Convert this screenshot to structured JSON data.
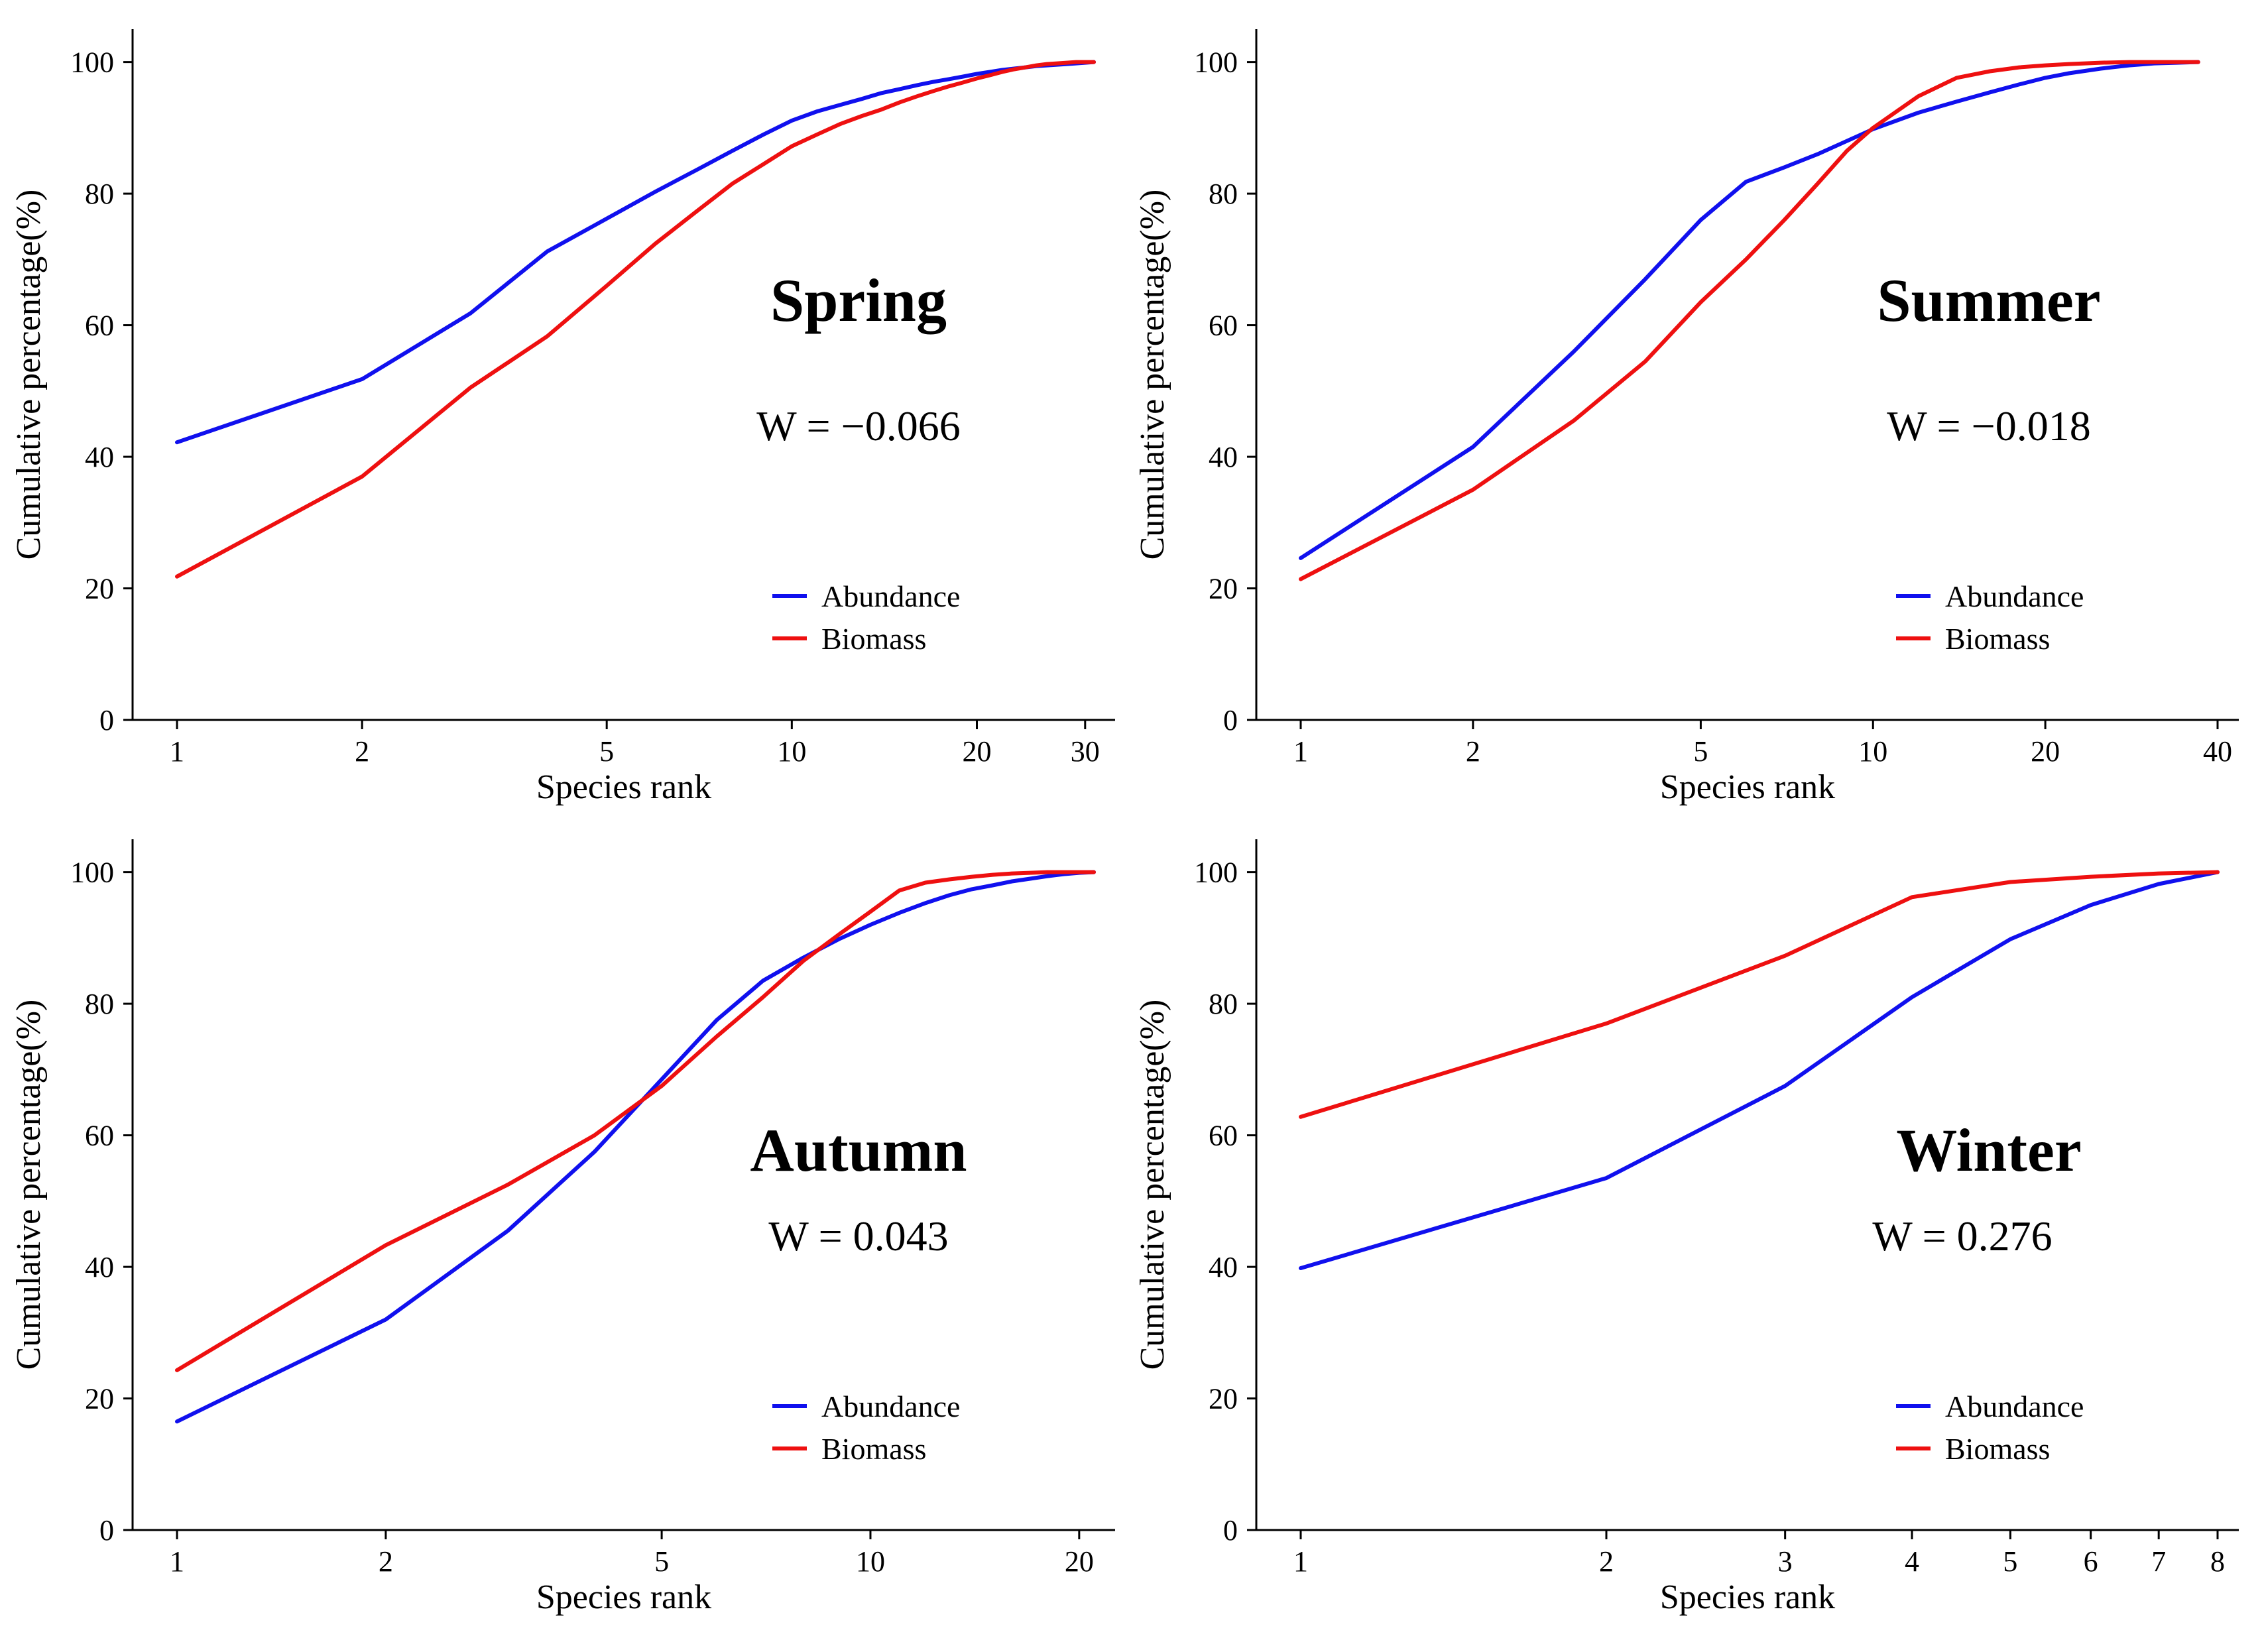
{
  "colors": {
    "abundance": "#1010ee",
    "biomass": "#ee1010",
    "axis": "#000000"
  },
  "chart_data": [
    {
      "type": "line",
      "title": "Spring",
      "annotation": "W = −0.066",
      "xlabel": "Species rank",
      "ylabel": "Cumulative percentage(%)",
      "xscale": "log",
      "xlim": [
        0.85,
        37
      ],
      "ylim": [
        0,
        105
      ],
      "xticks": [
        1,
        2,
        5,
        10,
        20,
        30
      ],
      "yticks": [
        0,
        20,
        40,
        60,
        80,
        100
      ],
      "legend": "lower-right",
      "series": [
        {
          "name": "Abundance",
          "color_key": "abundance",
          "x": [
            1,
            2,
            3,
            4,
            5,
            6,
            7,
            8,
            9,
            10,
            11,
            12,
            13,
            14,
            15,
            16,
            17,
            18,
            19,
            20,
            21,
            22,
            23,
            24,
            25,
            26,
            27,
            28,
            29,
            30,
            31
          ],
          "y": [
            42.2,
            51.8,
            61.8,
            71.2,
            76.2,
            80.3,
            83.6,
            86.5,
            89.0,
            91.1,
            92.5,
            93.5,
            94.4,
            95.3,
            95.9,
            96.5,
            97.0,
            97.4,
            97.8,
            98.2,
            98.5,
            98.8,
            99.0,
            99.2,
            99.4,
            99.5,
            99.6,
            99.7,
            99.8,
            99.9,
            100
          ]
        },
        {
          "name": "Biomass",
          "color_key": "biomass",
          "x": [
            1,
            2,
            3,
            4,
            5,
            6,
            7,
            8,
            9,
            10,
            11,
            12,
            13,
            14,
            15,
            16,
            17,
            18,
            19,
            20,
            21,
            22,
            23,
            24,
            25,
            26,
            27,
            28,
            29,
            30,
            31
          ],
          "y": [
            21.8,
            37.0,
            50.5,
            58.3,
            66.0,
            72.4,
            77.3,
            81.5,
            84.5,
            87.2,
            89.0,
            90.6,
            91.8,
            92.8,
            93.9,
            94.8,
            95.6,
            96.3,
            96.9,
            97.5,
            98.0,
            98.5,
            98.9,
            99.2,
            99.5,
            99.7,
            99.8,
            99.9,
            100,
            100,
            100
          ]
        }
      ]
    },
    {
      "type": "line",
      "title": "Summer",
      "annotation": "W = −0.018",
      "xlabel": "Species rank",
      "ylabel": "Cumulative percentage(%)",
      "xscale": "log",
      "xlim": [
        0.85,
        45
      ],
      "ylim": [
        0,
        105
      ],
      "xticks": [
        1,
        2,
        5,
        10,
        20,
        40
      ],
      "yticks": [
        0,
        20,
        40,
        60,
        80,
        100
      ],
      "legend": "lower-right",
      "series": [
        {
          "name": "Abundance",
          "color_key": "abundance",
          "x": [
            1,
            2,
            3,
            4,
            5,
            6,
            7,
            8,
            9,
            10,
            12,
            14,
            16,
            18,
            20,
            22,
            25,
            28,
            31,
            34,
            37
          ],
          "y": [
            24.6,
            41.5,
            56.0,
            67.0,
            76.0,
            81.8,
            84.0,
            86.0,
            88.0,
            89.8,
            92.3,
            94.0,
            95.4,
            96.6,
            97.6,
            98.3,
            99.0,
            99.5,
            99.8,
            99.9,
            100
          ]
        },
        {
          "name": "Biomass",
          "color_key": "biomass",
          "x": [
            1,
            2,
            3,
            4,
            5,
            6,
            7,
            8,
            9,
            10,
            12,
            14,
            16,
            18,
            20,
            22,
            25,
            28,
            31,
            34,
            37
          ],
          "y": [
            21.4,
            35.0,
            45.5,
            54.5,
            63.5,
            70.0,
            76.0,
            81.5,
            86.5,
            90.0,
            94.8,
            97.6,
            98.6,
            99.2,
            99.5,
            99.7,
            99.9,
            100,
            100,
            100,
            100
          ]
        }
      ]
    },
    {
      "type": "line",
      "title": "Autumn",
      "annotation": "W = 0.043",
      "xlabel": "Species rank",
      "ylabel": "Cumulative percentage(%)",
      "xscale": "log",
      "xlim": [
        0.85,
        25
      ],
      "ylim": [
        0,
        105
      ],
      "xticks": [
        1,
        2,
        5,
        10,
        20
      ],
      "yticks": [
        0,
        20,
        40,
        60,
        80,
        100
      ],
      "legend": "lower-right",
      "series": [
        {
          "name": "Abundance",
          "color_key": "abundance",
          "x": [
            1,
            2,
            3,
            4,
            5,
            6,
            7,
            8,
            9,
            10,
            11,
            12,
            13,
            14,
            15,
            16,
            17,
            18,
            19,
            20,
            21
          ],
          "y": [
            16.5,
            32.0,
            45.5,
            57.5,
            68.5,
            77.5,
            83.5,
            87.0,
            89.8,
            92.0,
            93.8,
            95.3,
            96.5,
            97.4,
            98.0,
            98.6,
            99.0,
            99.4,
            99.7,
            99.9,
            100
          ]
        },
        {
          "name": "Biomass",
          "color_key": "biomass",
          "x": [
            1,
            2,
            3,
            4,
            5,
            6,
            7,
            8,
            9,
            10,
            11,
            12,
            13,
            14,
            15,
            16,
            17,
            18,
            19,
            20,
            21
          ],
          "y": [
            24.3,
            43.3,
            52.5,
            60.0,
            67.5,
            75.0,
            81.0,
            86.5,
            90.5,
            94.0,
            97.2,
            98.4,
            98.9,
            99.3,
            99.6,
            99.8,
            99.9,
            100,
            100,
            100,
            100
          ]
        }
      ]
    },
    {
      "type": "line",
      "title": "Winter",
      "annotation": "W = 0.276",
      "xlabel": "Species rank",
      "ylabel": "Cumulative percentage(%)",
      "xscale": "log",
      "xlim": [
        0.85,
        9.0
      ],
      "ylim": [
        0,
        105
      ],
      "xticks": [
        1,
        2,
        3,
        4,
        5,
        6,
        7,
        8
      ],
      "yticks": [
        0,
        20,
        40,
        60,
        80,
        100
      ],
      "legend": "lower-right",
      "series": [
        {
          "name": "Abundance",
          "color_key": "abundance",
          "x": [
            1,
            2,
            3,
            4,
            5,
            6,
            7,
            8
          ],
          "y": [
            39.8,
            53.5,
            67.5,
            81.0,
            89.8,
            95.0,
            98.2,
            100
          ]
        },
        {
          "name": "Biomass",
          "color_key": "biomass",
          "x": [
            1,
            2,
            3,
            4,
            5,
            6,
            7,
            8
          ],
          "y": [
            62.8,
            77.0,
            87.3,
            96.2,
            98.5,
            99.3,
            99.8,
            100
          ]
        }
      ]
    }
  ]
}
